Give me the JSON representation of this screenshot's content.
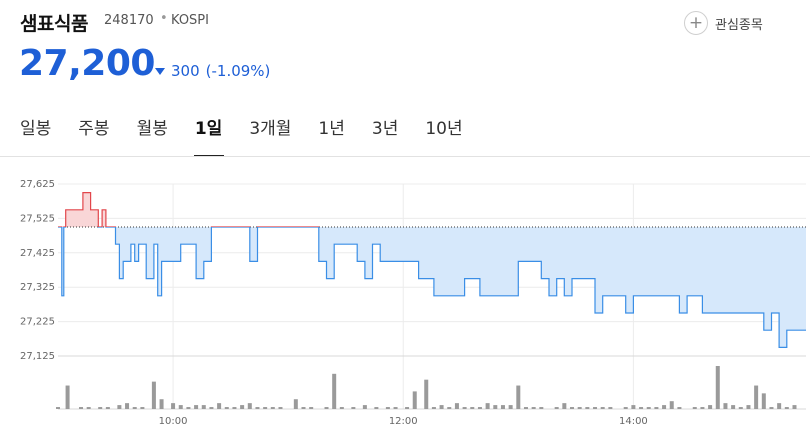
{
  "header": {
    "stock_name": "샘표식품",
    "stock_code": "248170",
    "separator": "•",
    "market": "KOSPI",
    "favorite_label": "관심종목",
    "favorite_icon": "plus-icon"
  },
  "quote": {
    "price": "27,200",
    "direction_icon": "down-triangle-icon",
    "change": "300",
    "change_percent": "(-1.09%)",
    "color_down": "#1e5fd6",
    "color_up": "#e2464b"
  },
  "tabs": [
    {
      "label": "일봉",
      "active": false
    },
    {
      "label": "주봉",
      "active": false
    },
    {
      "label": "월봉",
      "active": false
    },
    {
      "label": "1일",
      "active": true
    },
    {
      "label": "3개월",
      "active": false
    },
    {
      "label": "1년",
      "active": false
    },
    {
      "label": "3년",
      "active": false
    },
    {
      "label": "10년",
      "active": false
    }
  ],
  "chart_data": {
    "type": "area",
    "reference_price": 27500,
    "ylim": [
      27125,
      27625
    ],
    "y_ticks": [
      27625,
      27525,
      27425,
      27325,
      27225,
      27125
    ],
    "y_tick_labels": [
      "27,625",
      "27,525",
      "27,425",
      "27,325",
      "27,225",
      "27,125"
    ],
    "x_range_minutes": [
      540,
      930
    ],
    "x_ticks": [
      "10:00",
      "12:00",
      "14:00"
    ],
    "x_tick_minutes": [
      600,
      720,
      840
    ],
    "grid": true,
    "above_reference_color": "#e2464b",
    "below_reference_color": "#3a8ee6",
    "price_series": {
      "time": [
        540,
        542,
        543,
        544,
        545,
        552,
        553,
        555,
        557,
        560,
        561,
        563,
        565,
        568,
        570,
        572,
        574,
        576,
        578,
        580,
        582,
        584,
        586,
        588,
        590,
        592,
        594,
        596,
        600,
        604,
        608,
        612,
        616,
        620,
        624,
        628,
        632,
        636,
        640,
        644,
        648,
        652,
        656,
        660,
        664,
        668,
        672,
        676,
        680,
        684,
        688,
        692,
        696,
        700,
        704,
        708,
        712,
        716,
        720,
        724,
        728,
        732,
        736,
        740,
        744,
        748,
        752,
        756,
        760,
        764,
        768,
        772,
        776,
        780,
        784,
        788,
        792,
        796,
        800,
        804,
        808,
        812,
        816,
        820,
        824,
        828,
        832,
        836,
        840,
        844,
        848,
        852,
        856,
        860,
        864,
        868,
        872,
        876,
        880,
        884,
        888,
        892,
        896,
        900,
        904,
        908,
        912,
        916,
        920,
        924,
        930
      ],
      "price": [
        27500,
        27300,
        27500,
        27550,
        27550,
        27550,
        27600,
        27600,
        27550,
        27550,
        27500,
        27550,
        27500,
        27500,
        27450,
        27350,
        27400,
        27400,
        27450,
        27400,
        27450,
        27450,
        27350,
        27350,
        27450,
        27300,
        27400,
        27400,
        27400,
        27450,
        27450,
        27350,
        27400,
        27500,
        27500,
        27500,
        27500,
        27500,
        27400,
        27500,
        27500,
        27500,
        27500,
        27500,
        27500,
        27500,
        27500,
        27400,
        27350,
        27450,
        27450,
        27450,
        27400,
        27350,
        27450,
        27400,
        27400,
        27400,
        27400,
        27400,
        27350,
        27350,
        27300,
        27300,
        27300,
        27300,
        27350,
        27350,
        27300,
        27300,
        27300,
        27300,
        27300,
        27400,
        27400,
        27400,
        27350,
        27300,
        27350,
        27300,
        27350,
        27350,
        27350,
        27250,
        27300,
        27300,
        27300,
        27250,
        27300,
        27300,
        27300,
        27300,
        27300,
        27300,
        27250,
        27300,
        27300,
        27250,
        27250,
        27250,
        27250,
        27250,
        27250,
        27250,
        27250,
        27200,
        27250,
        27150,
        27200,
        27200,
        27200
      ]
    },
    "volume_series": {
      "time": [
        540,
        545,
        552,
        556,
        562,
        566,
        572,
        576,
        580,
        584,
        590,
        594,
        600,
        604,
        608,
        612,
        616,
        620,
        624,
        628,
        632,
        636,
        640,
        644,
        648,
        652,
        656,
        664,
        668,
        672,
        680,
        684,
        688,
        694,
        700,
        706,
        712,
        716,
        722,
        726,
        732,
        736,
        740,
        744,
        748,
        752,
        756,
        760,
        764,
        768,
        772,
        776,
        780,
        784,
        788,
        792,
        800,
        804,
        808,
        812,
        816,
        820,
        824,
        828,
        836,
        840,
        844,
        848,
        852,
        856,
        860,
        864,
        872,
        876,
        880,
        884,
        888,
        892,
        896,
        900,
        904,
        908,
        912,
        916,
        920,
        924
      ],
      "volume": [
        1,
        12,
        1,
        1,
        1,
        1,
        2,
        3,
        1,
        1,
        14,
        5,
        3,
        2,
        1,
        2,
        2,
        1,
        3,
        1,
        1,
        2,
        3,
        1,
        1,
        1,
        1,
        5,
        1,
        1,
        1,
        18,
        1,
        1,
        2,
        1,
        1,
        1,
        1,
        9,
        15,
        1,
        2,
        1,
        3,
        1,
        1,
        1,
        3,
        2,
        2,
        2,
        12,
        1,
        1,
        1,
        1,
        3,
        1,
        1,
        1,
        1,
        1,
        1,
        1,
        2,
        1,
        1,
        1,
        2,
        4,
        1,
        1,
        1,
        2,
        22,
        3,
        2,
        1,
        2,
        12,
        8,
        1,
        3,
        1,
        2
      ]
    }
  }
}
